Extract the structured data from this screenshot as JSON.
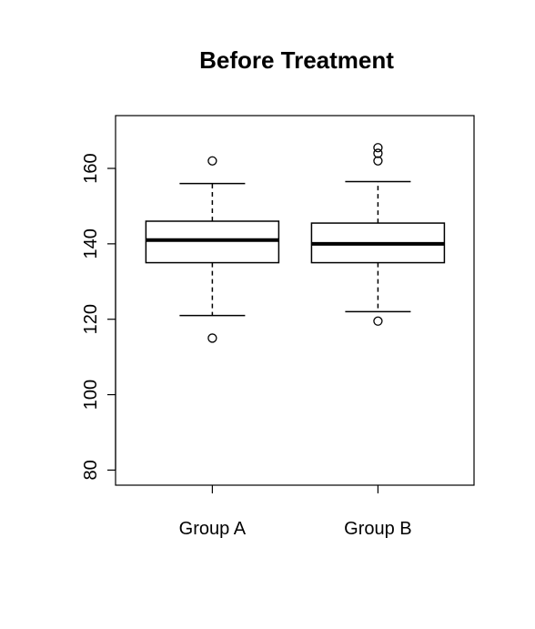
{
  "chart_data": {
    "type": "boxplot",
    "title": "Before Treatment",
    "xlabel": "",
    "ylabel": "",
    "categories": [
      "Group A",
      "Group B"
    ],
    "y_ticks": [
      80,
      100,
      120,
      140,
      160
    ],
    "ylim": [
      76,
      174
    ],
    "grid": false,
    "legend": "none",
    "boxes": [
      {
        "name": "Group A",
        "whisker_low": 121,
        "q1": 135,
        "median": 141,
        "q3": 146,
        "whisker_high": 156,
        "outliers": [
          162,
          115
        ]
      },
      {
        "name": "Group B",
        "whisker_low": 122,
        "q1": 135,
        "median": 140,
        "q3": 145.5,
        "whisker_high": 156.5,
        "outliers": [
          165.5,
          164,
          162,
          119.5
        ]
      }
    ]
  }
}
